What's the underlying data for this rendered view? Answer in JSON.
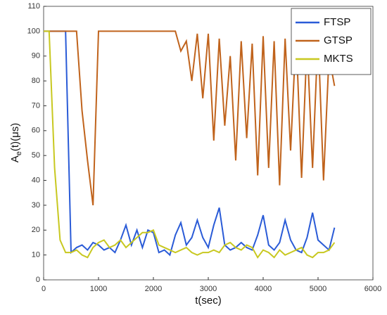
{
  "chart_data": {
    "type": "line",
    "ylabel": {
      "base": "A",
      "sub": "e",
      "rest": "(t)(μs)"
    },
    "xlabel": "t(sec)",
    "xlim": [
      0,
      6000
    ],
    "xticks": [
      0,
      1000,
      2000,
      3000,
      4000,
      5000,
      6000
    ],
    "ylim": [
      0,
      110
    ],
    "yticks": [
      0,
      10,
      20,
      30,
      40,
      50,
      60,
      70,
      80,
      90,
      100,
      110
    ],
    "legend": "top-right",
    "x": [
      0,
      100,
      200,
      300,
      400,
      500,
      600,
      700,
      800,
      900,
      1000,
      1100,
      1200,
      1300,
      1400,
      1500,
      1600,
      1700,
      1800,
      1900,
      2000,
      2100,
      2200,
      2300,
      2400,
      2500,
      2600,
      2700,
      2800,
      2900,
      3000,
      3100,
      3200,
      3300,
      3400,
      3500,
      3600,
      3700,
      3800,
      3900,
      4000,
      4100,
      4200,
      4300,
      4400,
      4500,
      4600,
      4700,
      4800,
      4900,
      5000,
      5100,
      5200,
      5300
    ],
    "series": [
      {
        "name": "FTSP",
        "color": "#2a5bd7",
        "values": [
          100,
          100,
          100,
          100,
          100,
          11,
          13,
          14,
          12,
          15,
          14,
          12,
          13,
          11,
          16,
          22,
          14,
          20,
          13,
          20,
          19,
          11,
          12,
          10,
          18,
          23,
          14,
          17,
          24,
          17,
          13,
          22,
          29,
          14,
          12,
          13,
          15,
          13,
          12,
          18,
          26,
          14,
          12,
          15,
          24,
          16,
          12,
          11,
          17,
          27,
          16,
          14,
          12,
          21
        ]
      },
      {
        "name": "GTSP",
        "color": "#c0631c",
        "values": [
          100,
          100,
          100,
          100,
          100,
          100,
          100,
          68,
          48,
          30,
          100,
          100,
          100,
          100,
          100,
          100,
          100,
          100,
          100,
          100,
          100,
          100,
          100,
          100,
          100,
          92,
          96,
          80,
          99,
          73,
          99,
          56,
          97,
          62,
          90,
          48,
          96,
          57,
          95,
          42,
          98,
          45,
          96,
          38,
          97,
          52,
          99,
          41,
          96,
          45,
          99,
          40,
          90,
          78
        ]
      },
      {
        "name": "MKTS",
        "color": "#c8c820",
        "values": [
          100,
          100,
          45,
          16,
          11,
          11,
          12,
          10,
          9,
          13,
          15,
          16,
          13,
          14,
          16,
          13,
          15,
          17,
          19,
          19,
          20,
          14,
          13,
          12,
          11,
          12,
          13,
          11,
          10,
          11,
          11,
          12,
          11,
          14,
          15,
          13,
          12,
          14,
          13,
          9,
          12,
          11,
          9,
          12,
          10,
          11,
          12,
          13,
          10,
          9,
          11,
          11,
          12,
          15
        ]
      }
    ]
  }
}
